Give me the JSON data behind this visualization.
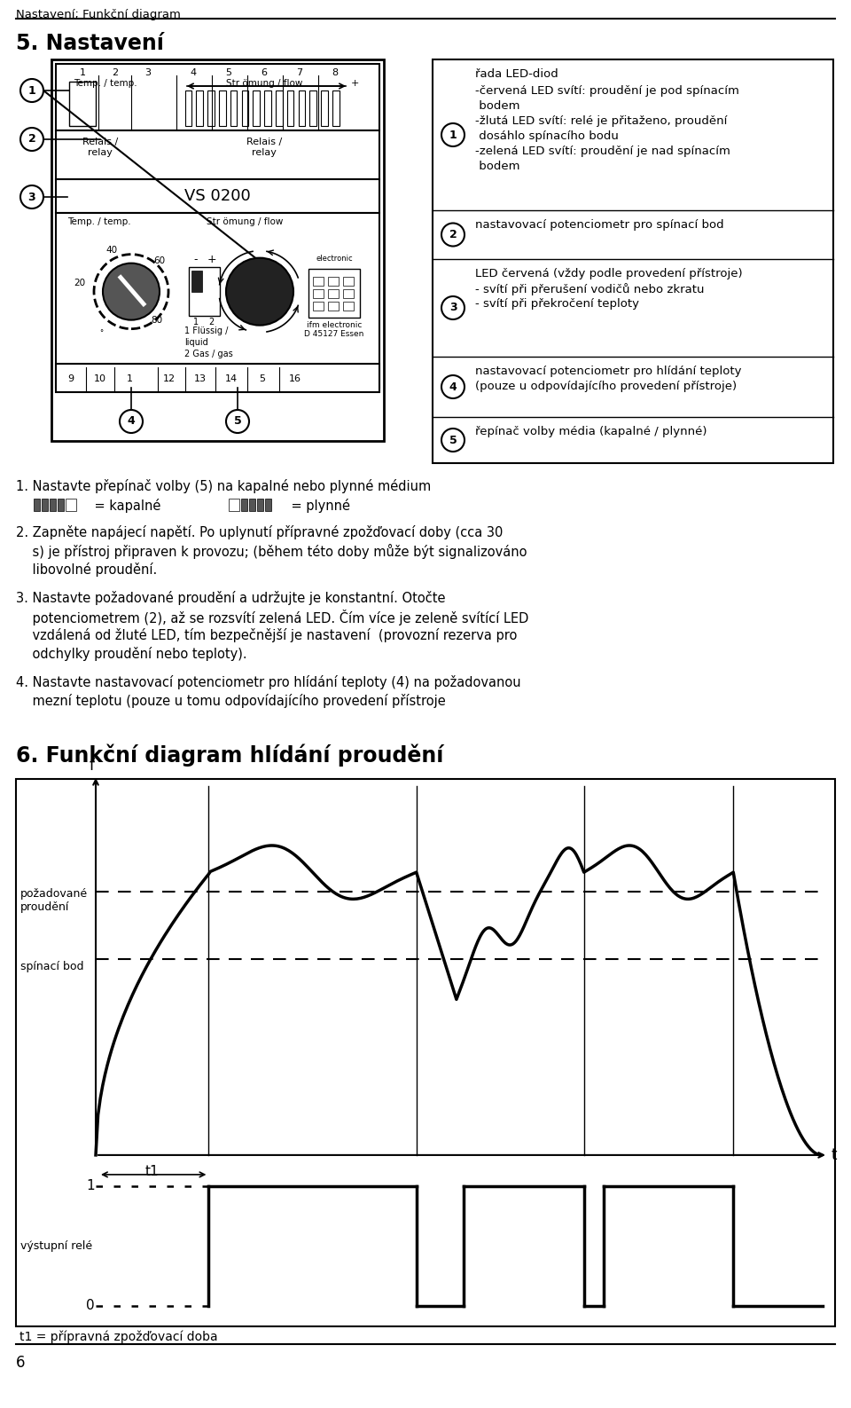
{
  "page_title": "Nastavení; Funkční diagram",
  "section_title": "5. Nastavení",
  "section6_title": "6. Funkční diagram hlídání proudění",
  "bg_color": "#ffffff",
  "footnote": "6",
  "t1_label": "t1 = přípravná zpožďovací doba",
  "legend_items": [
    {
      "num": "1",
      "title": "řada LED-diod",
      "lines": [
        "-červená LED svítí: proudění je pod spínacím",
        " bodem",
        "-žlutá LED svítí: relé je přitaženo, proudění",
        " dosáhlo spínacího bodu",
        "-zelená LED svítí: proudění je nad spínacím",
        " bodem"
      ]
    },
    {
      "num": "2",
      "title": "",
      "lines": [
        "nastavovací potenciometr pro spínací bod"
      ]
    },
    {
      "num": "3",
      "title": "",
      "lines": [
        "LED červená (vždy podle provedení přístroje)",
        "- svítí při přerušení vodičů nebo zkratu",
        "- svítí při překročení teploty"
      ]
    },
    {
      "num": "4",
      "title": "",
      "lines": [
        "nastavovací potenciometr pro hlídání teploty",
        "(pouze u odpovídajícího provedení přístroje)"
      ]
    },
    {
      "num": "5",
      "title": "",
      "lines": [
        "řepínač volby média (kapalné / plynné)"
      ]
    }
  ],
  "step1a": "1. Nastavte přepínač volby (5) na kapalné nebo plynné médium",
  "step1b_kapal": "    = kapalné",
  "step1b_plynn": "    = plynné",
  "step2": "2. Zapněte napájecí napětí. Po uplynutí přípravné zpožďovací doby (cca 30",
  "step2b": "    s) je přístroj připraven k provozu; (během této doby může být signalizováno",
  "step2c": "    libovolné proudění.",
  "step3a": "3. Nastavte požadované proudění a udržujte je konstantní. Otočte",
  "step3b": "    potenciometrem (2), až se rozsvítí zelená LED. Čím více je zeleně svítící LED",
  "step3c": "    vzdálená od žluté LED, tím bezpečnější je nastavení  (provozní rezerva pro",
  "step3d": "    odchylky proudění nebo teploty).",
  "step4a": "4. Nastavte nastavovací potenciometr pro hlídání teploty (4) na požadovanou",
  "step4b": "    mezní teplotu (pouze u tomu odpovídajícího provedení přístroje",
  "diagram_f": "f",
  "diagram_t": "t",
  "label_pozadovane": "požadované\nproudění",
  "label_spinaci": "spínací bod",
  "label_vystupni": "výstupní relé",
  "label_t1": "t1",
  "label_1": "1",
  "label_0": "0"
}
